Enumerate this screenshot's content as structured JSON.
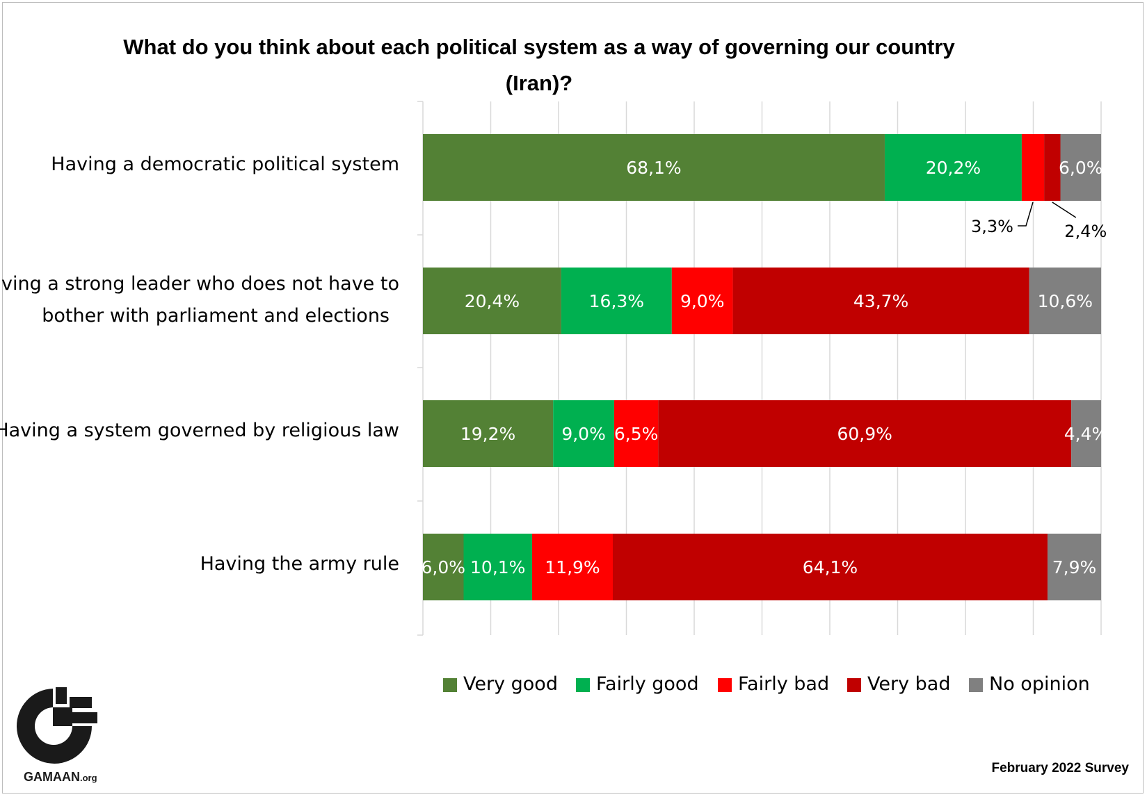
{
  "chart_data": {
    "type": "bar",
    "orientation": "horizontal",
    "stacked": true,
    "title": "What do you think about each political system as a way of governing our country (Iran)?",
    "categories": [
      "Having a democratic political system",
      "Having a strong leader who does not have to bother with parliament and elections",
      "Having a system governed by religious law",
      "Having the army rule"
    ],
    "series": [
      {
        "name": "Very good",
        "color": "#538135",
        "values": [
          68.1,
          20.4,
          19.2,
          6.0
        ],
        "labels": [
          "68,1%",
          "20,4%",
          "19,2%",
          "6,0%"
        ]
      },
      {
        "name": "Fairly good",
        "color": "#00B050",
        "values": [
          20.2,
          16.3,
          9.0,
          10.1
        ],
        "labels": [
          "20,2%",
          "16,3%",
          "9,0%",
          "10,1%"
        ]
      },
      {
        "name": "Fairly bad",
        "color": "#FF0000",
        "values": [
          3.3,
          9.0,
          6.5,
          11.9
        ],
        "labels": [
          "3,3%",
          "9,0%",
          "6,5%",
          "11,9%"
        ]
      },
      {
        "name": "Very bad",
        "color": "#C00000",
        "values": [
          2.4,
          43.7,
          60.9,
          64.1
        ],
        "labels": [
          "2,4%",
          "43,7%",
          "60,9%",
          "64,1%"
        ]
      },
      {
        "name": "No opinion",
        "color": "#808080",
        "values": [
          6.0,
          10.6,
          4.4,
          7.9
        ],
        "labels": [
          "6,0%",
          "10,6%",
          "4,4%",
          "7,9%"
        ]
      }
    ],
    "xlim": [
      0,
      100
    ],
    "grid": true,
    "legend_position": "bottom"
  },
  "source": "February 2022 Survey",
  "logo": {
    "name": "GAMAAN",
    "suffix": ".org"
  }
}
